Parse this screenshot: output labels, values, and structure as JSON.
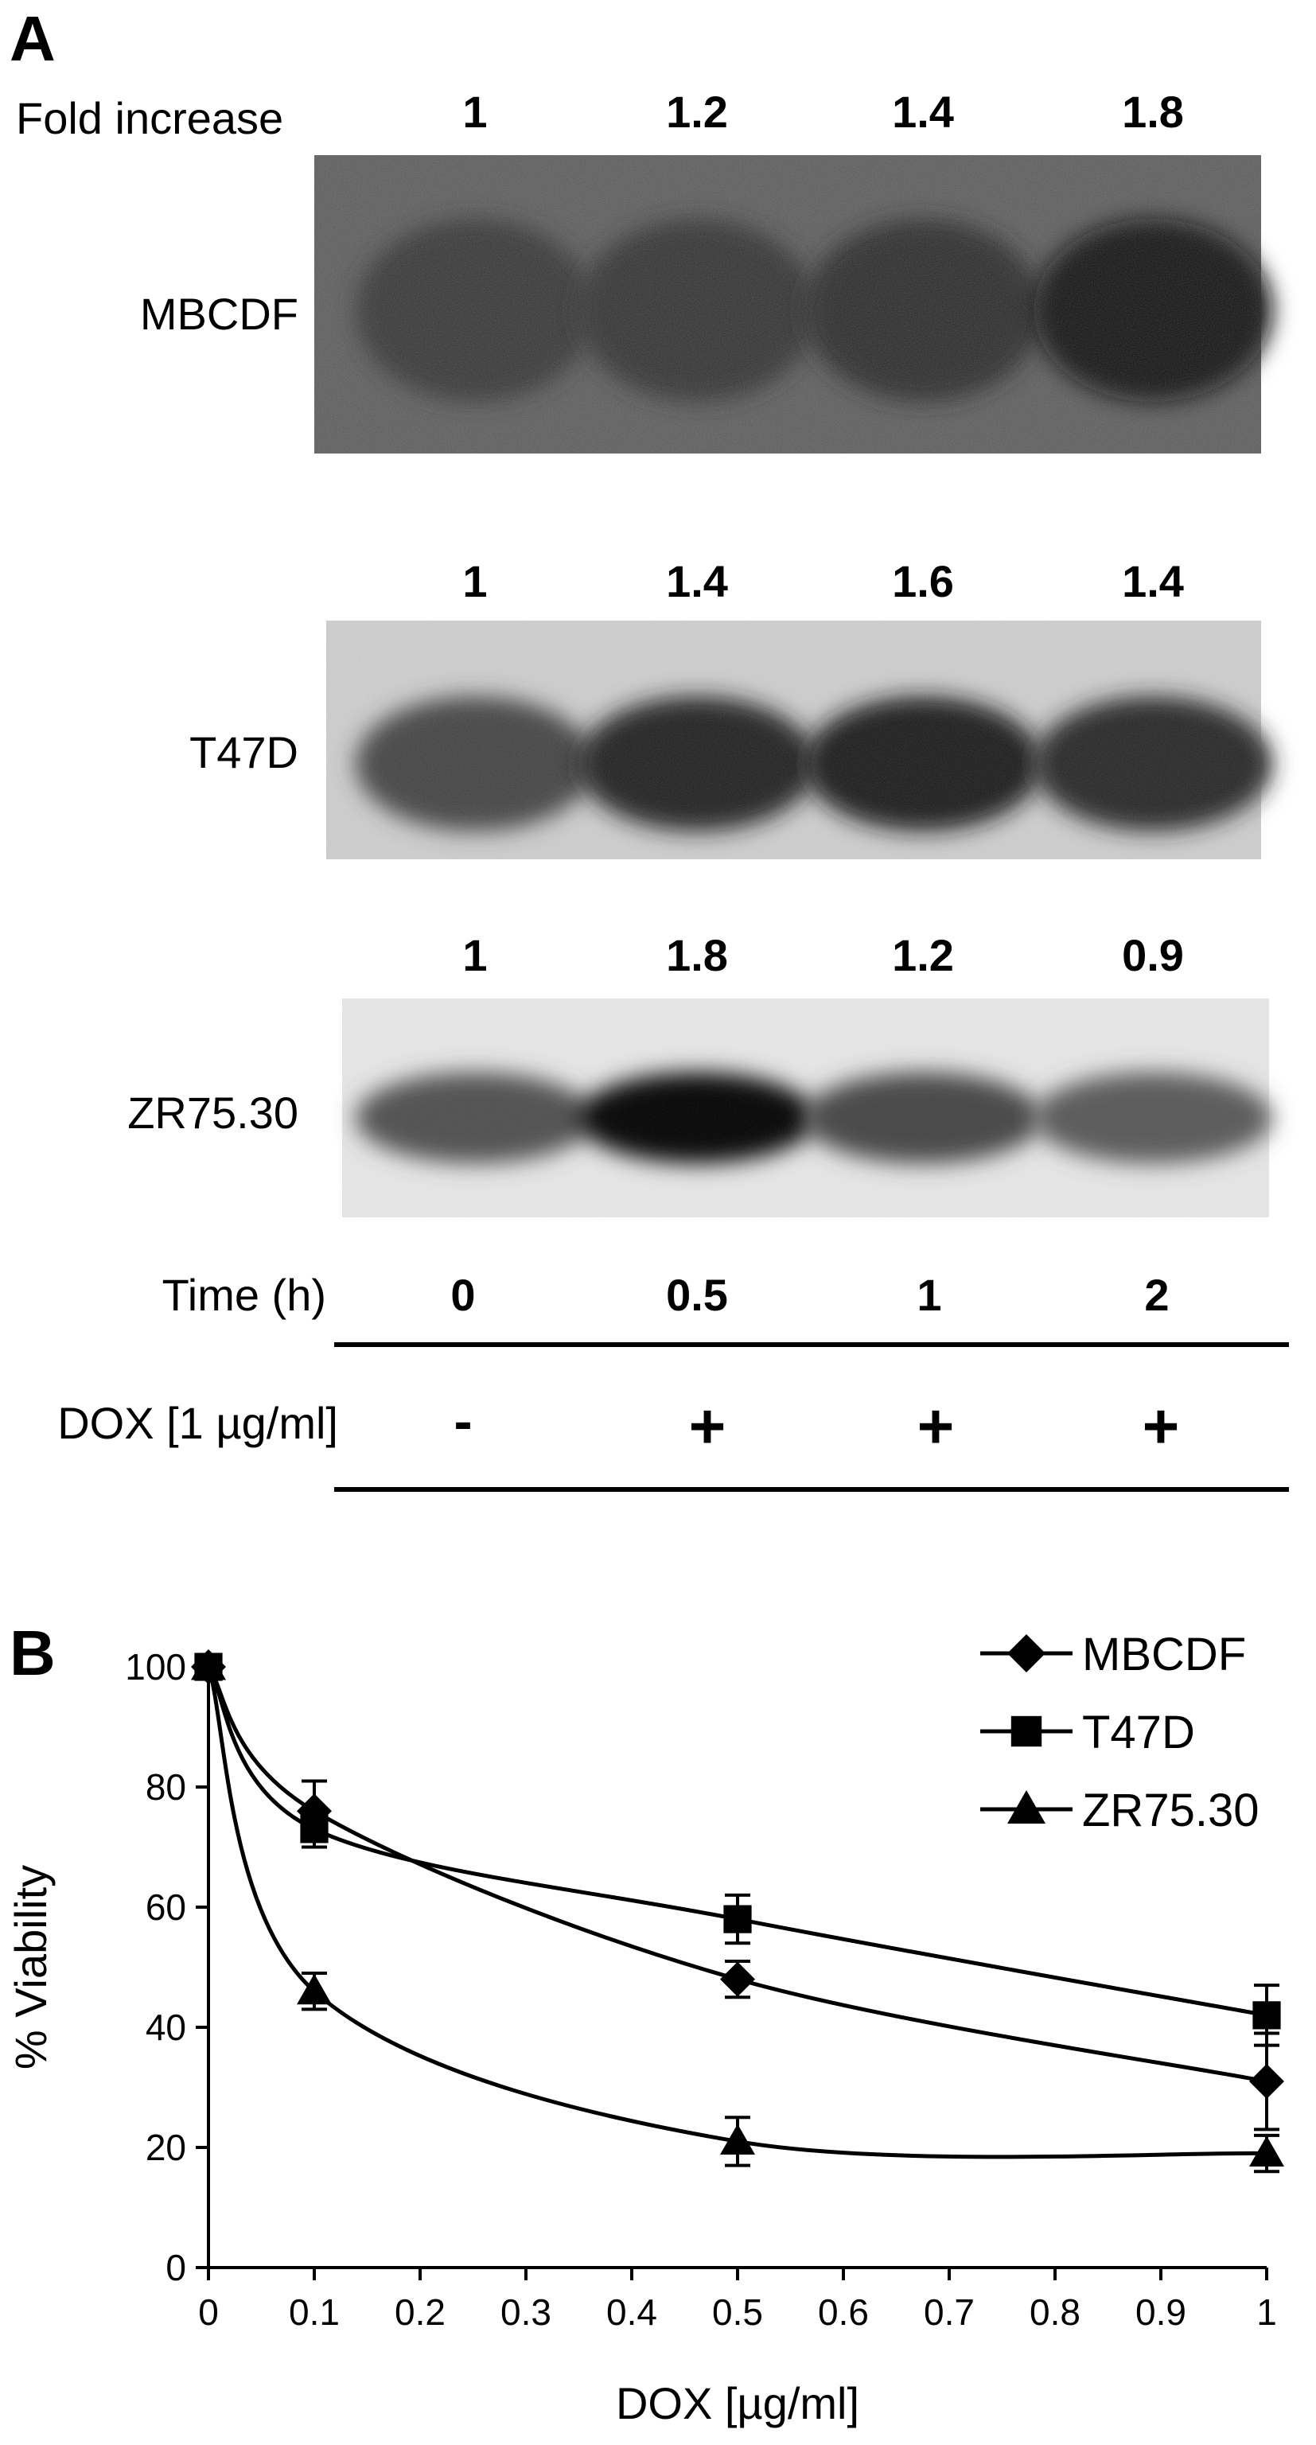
{
  "panel_a": {
    "letter": "A",
    "fold_label": "Fold increase",
    "blots": [
      {
        "cell_line": "MBCDF",
        "folds": [
          "1",
          "1.2",
          "1.4",
          "1.8"
        ],
        "band_darkness": [
          0.8,
          0.82,
          0.85,
          0.95
        ]
      },
      {
        "cell_line": "T47D",
        "folds": [
          "1",
          "1.4",
          "1.6",
          "1.4"
        ],
        "band_darkness": [
          0.75,
          0.88,
          0.92,
          0.86
        ]
      },
      {
        "cell_line": "ZR75.30",
        "folds": [
          "1",
          "1.8",
          "1.2",
          "0.9"
        ],
        "band_darkness": [
          0.7,
          0.98,
          0.74,
          0.66
        ]
      }
    ],
    "time_label": "Time (h)",
    "time_values": [
      "0",
      "0.5",
      "1",
      "2"
    ],
    "dox_label": "DOX [1 µg/ml]",
    "dox_values": [
      "-",
      "+",
      "+",
      "+"
    ]
  },
  "panel_b": {
    "letter": "B"
  },
  "chart_data": {
    "type": "line",
    "title": "",
    "xlabel": "DOX [µg/ml]",
    "ylabel": "% Viability",
    "xlim": [
      0,
      1
    ],
    "ylim": [
      0,
      100
    ],
    "xticks": [
      "0",
      "0.1",
      "0.2",
      "0.3",
      "0.4",
      "0.5",
      "0.6",
      "0.7",
      "0.8",
      "0.9",
      "1"
    ],
    "yticks": [
      "0",
      "20",
      "40",
      "60",
      "80",
      "100"
    ],
    "legend_position": "top-right",
    "grid": false,
    "series": [
      {
        "name": "MBCDF",
        "marker": "diamond",
        "x": [
          0,
          0.1,
          0.5,
          1
        ],
        "y": [
          100,
          76,
          48,
          31
        ],
        "err": [
          1,
          5,
          3,
          8
        ]
      },
      {
        "name": "T47D",
        "marker": "square",
        "x": [
          0,
          0.1,
          0.5,
          1
        ],
        "y": [
          100,
          73,
          58,
          42
        ],
        "err": [
          1,
          3,
          4,
          5
        ]
      },
      {
        "name": "ZR75.30",
        "marker": "triangle",
        "x": [
          0,
          0.1,
          0.5,
          1
        ],
        "y": [
          100,
          46,
          21,
          19
        ],
        "err": [
          1,
          3,
          4,
          3
        ]
      }
    ]
  }
}
